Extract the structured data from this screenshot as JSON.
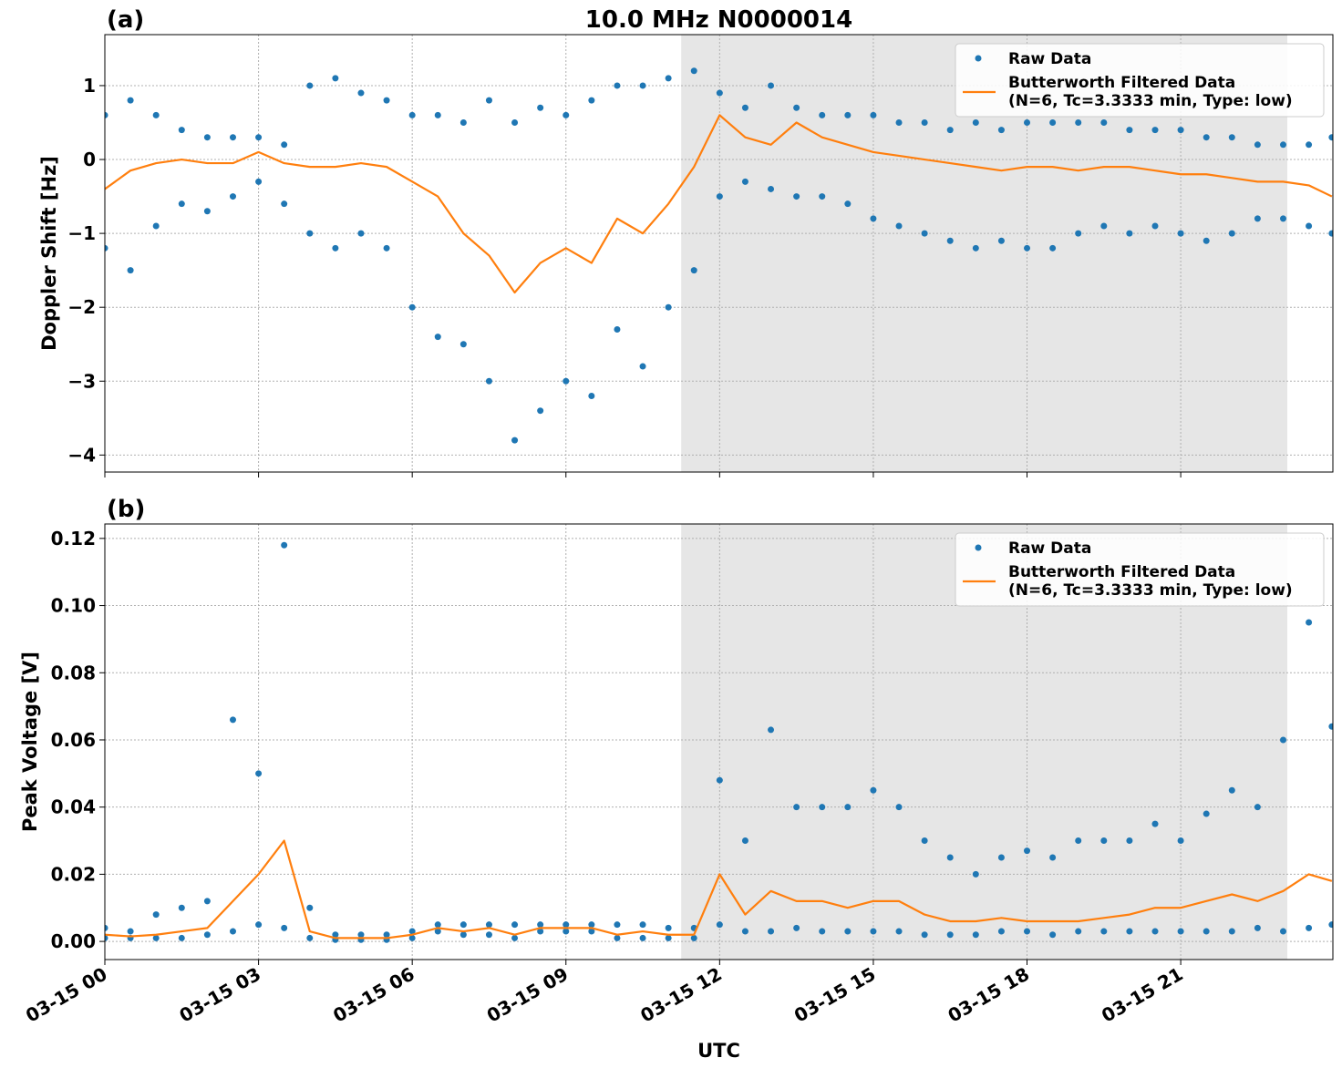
{
  "chart_data": [
    {
      "type": "line",
      "title": "10.0 MHz N0000014",
      "panel_label": "(a)",
      "ylabel": "Doppler Shift [Hz]",
      "xlim": [
        0,
        23.97
      ],
      "xticks": [
        0,
        3,
        6,
        9,
        12,
        15,
        18,
        21
      ],
      "ylim": [
        -4.23,
        1.69
      ],
      "yticks": [
        {
          "value": -4,
          "label": "−4"
        },
        {
          "value": -3,
          "label": "−3"
        },
        {
          "value": -2,
          "label": "−2"
        },
        {
          "value": -1,
          "label": "−1"
        },
        0,
        1
      ],
      "grid": true,
      "shade": [
        11.25,
        23.08
      ],
      "legend": "upper right",
      "x": [
        0,
        0.5,
        1,
        1.5,
        2,
        2.5,
        3,
        3.5,
        4,
        4.5,
        5,
        5.5,
        6,
        6.5,
        7,
        7.5,
        8,
        8.5,
        9,
        9.5,
        10,
        10.5,
        11,
        11.5,
        12,
        12.5,
        13,
        13.5,
        14,
        14.5,
        15,
        15.5,
        16,
        16.5,
        17,
        17.5,
        18,
        18.5,
        19,
        19.5,
        20,
        20.5,
        21,
        21.5,
        22,
        22.5,
        23,
        23.5,
        23.95
      ],
      "series": [
        {
          "name": "Raw Data",
          "color": "#1f77b4",
          "style": "markers",
          "x": [
            0,
            0,
            0.5,
            0.5,
            1,
            1,
            1.5,
            1.5,
            2,
            2,
            2.5,
            2.5,
            3,
            3,
            3.5,
            3.5,
            4,
            4,
            4.5,
            4.5,
            5,
            5,
            5.5,
            5.5,
            6,
            6,
            6.5,
            6.5,
            7,
            7,
            7.5,
            7.5,
            8,
            8,
            8.5,
            8.5,
            9,
            9,
            9.5,
            9.5,
            10,
            10,
            10.5,
            10.5,
            11,
            11,
            11.5,
            11.5,
            12,
            12,
            12.5,
            12.5,
            13,
            13,
            13.5,
            13.5,
            14,
            14,
            14.5,
            14.5,
            15,
            15,
            15.5,
            15.5,
            16,
            16,
            16.5,
            16.5,
            17,
            17,
            17.5,
            17.5,
            18,
            18,
            18.5,
            18.5,
            19,
            19,
            19.5,
            19.5,
            20,
            20,
            20.5,
            20.5,
            21,
            21,
            21.5,
            21.5,
            22,
            22,
            22.5,
            22.5,
            23,
            23,
            23.5,
            23.5,
            23.95,
            23.95
          ],
          "values": [
            0.6,
            -1.2,
            0.8,
            -1.5,
            0.6,
            -0.9,
            0.4,
            -0.6,
            0.3,
            -0.7,
            0.3,
            -0.5,
            0.3,
            -0.3,
            0.2,
            -0.6,
            1.0,
            -1.0,
            1.1,
            -1.2,
            0.9,
            -1.0,
            0.8,
            -1.2,
            0.6,
            -2.0,
            0.6,
            -2.4,
            0.5,
            -2.5,
            0.8,
            -3.0,
            0.5,
            -3.8,
            0.7,
            -3.4,
            0.6,
            -3.0,
            0.8,
            -3.2,
            1.0,
            -2.3,
            1.0,
            -2.8,
            1.1,
            -2.0,
            1.2,
            -1.5,
            0.9,
            -0.5,
            0.7,
            -0.3,
            1.0,
            -0.4,
            0.7,
            -0.5,
            0.6,
            -0.5,
            0.6,
            -0.6,
            0.6,
            -0.8,
            0.5,
            -0.9,
            0.5,
            -1.0,
            0.4,
            -1.1,
            0.5,
            -1.2,
            0.4,
            -1.1,
            0.5,
            -1.2,
            0.5,
            -1.2,
            0.5,
            -1.0,
            0.5,
            -0.9,
            0.4,
            -1.0,
            0.4,
            -0.9,
            0.4,
            -1.0,
            0.3,
            -1.1,
            0.3,
            -1.0,
            0.2,
            -0.8,
            0.2,
            -0.8,
            0.2,
            -0.9,
            0.3,
            -1.0
          ]
        },
        {
          "name": "Butterworth Filtered Data\n(N=6, Tc=3.3333 min, Type: low)",
          "color": "#ff7f0e",
          "style": "line",
          "values": [
            -0.4,
            -0.15,
            -0.05,
            0.0,
            -0.05,
            -0.05,
            0.1,
            -0.05,
            -0.1,
            -0.1,
            -0.05,
            -0.1,
            -0.3,
            -0.5,
            -1.0,
            -1.3,
            -1.8,
            -1.4,
            -1.2,
            -1.4,
            -0.8,
            -1.0,
            -0.6,
            -0.1,
            0.6,
            0.3,
            0.2,
            0.5,
            0.3,
            0.2,
            0.1,
            0.05,
            0.0,
            -0.05,
            -0.1,
            -0.15,
            -0.1,
            -0.1,
            -0.15,
            -0.1,
            -0.1,
            -0.15,
            -0.2,
            -0.2,
            -0.25,
            -0.3,
            -0.3,
            -0.35,
            -0.5
          ]
        }
      ]
    },
    {
      "type": "line",
      "panel_label": "(b)",
      "ylabel": "Peak Voltage [V]",
      "xlabel": "UTC",
      "xlim": [
        0,
        23.97
      ],
      "xticks": [
        {
          "value": 0,
          "label": "03-15 00"
        },
        {
          "value": 3,
          "label": "03-15 03"
        },
        {
          "value": 6,
          "label": "03-15 06"
        },
        {
          "value": 9,
          "label": "03-15 09"
        },
        {
          "value": 12,
          "label": "03-15 12"
        },
        {
          "value": 15,
          "label": "03-15 15"
        },
        {
          "value": 18,
          "label": "03-15 18"
        },
        {
          "value": 21,
          "label": "03-15 21"
        }
      ],
      "ylim": [
        -0.0054,
        0.1243
      ],
      "yticks": [
        {
          "value": 0,
          "label": "0.00"
        },
        0.02,
        0.04,
        0.06,
        0.08,
        {
          "value": 0.1,
          "label": "0.10"
        },
        0.12
      ],
      "grid": true,
      "shade": [
        11.25,
        23.08
      ],
      "legend": "upper right",
      "x": [
        0,
        0.5,
        1,
        1.5,
        2,
        2.5,
        3,
        3.5,
        4,
        4.5,
        5,
        5.5,
        6,
        6.5,
        7,
        7.5,
        8,
        8.5,
        9,
        9.5,
        10,
        10.5,
        11,
        11.5,
        12,
        12.5,
        13,
        13.5,
        14,
        14.5,
        15,
        15.5,
        16,
        16.5,
        17,
        17.5,
        18,
        18.5,
        19,
        19.5,
        20,
        20.5,
        21,
        21.5,
        22,
        22.5,
        23,
        23.5,
        23.95
      ],
      "series": [
        {
          "name": "Raw Data",
          "color": "#1f77b4",
          "style": "markers",
          "x": [
            0,
            0,
            0.5,
            0.5,
            1,
            1,
            1.5,
            1.5,
            2,
            2,
            2.5,
            2.5,
            3,
            3,
            3.5,
            3.5,
            4,
            4,
            4.5,
            4.5,
            5,
            5,
            5.5,
            5.5,
            6,
            6,
            6.5,
            6.5,
            7,
            7,
            7.5,
            7.5,
            8,
            8,
            8.5,
            8.5,
            9,
            9,
            9.5,
            9.5,
            10,
            10,
            10.5,
            10.5,
            11,
            11,
            11.5,
            11.5,
            12,
            12,
            12.5,
            12.5,
            13,
            13,
            13.5,
            13.5,
            14,
            14,
            14.5,
            14.5,
            15,
            15,
            15.5,
            15.5,
            16,
            16,
            16.5,
            16.5,
            17,
            17,
            17.5,
            17.5,
            18,
            18,
            18.5,
            18.5,
            19,
            19,
            19.5,
            19.5,
            20,
            20,
            20.5,
            20.5,
            21,
            21,
            21.5,
            21.5,
            22,
            22,
            22.5,
            22.5,
            23,
            23,
            23.5,
            23.5,
            23.95,
            23.95
          ],
          "values": [
            0.004,
            0.001,
            0.003,
            0.001,
            0.008,
            0.001,
            0.01,
            0.001,
            0.012,
            0.002,
            0.066,
            0.003,
            0.05,
            0.005,
            0.118,
            0.004,
            0.01,
            0.001,
            0.002,
            0.0005,
            0.002,
            0.0005,
            0.002,
            0.0005,
            0.003,
            0.001,
            0.005,
            0.003,
            0.005,
            0.002,
            0.005,
            0.002,
            0.005,
            0.001,
            0.005,
            0.003,
            0.005,
            0.003,
            0.005,
            0.003,
            0.005,
            0.001,
            0.005,
            0.001,
            0.004,
            0.001,
            0.004,
            0.001,
            0.048,
            0.005,
            0.03,
            0.003,
            0.063,
            0.003,
            0.04,
            0.004,
            0.04,
            0.003,
            0.04,
            0.003,
            0.045,
            0.003,
            0.04,
            0.003,
            0.03,
            0.002,
            0.025,
            0.002,
            0.02,
            0.002,
            0.025,
            0.003,
            0.027,
            0.003,
            0.025,
            0.002,
            0.03,
            0.003,
            0.03,
            0.003,
            0.03,
            0.003,
            0.035,
            0.003,
            0.03,
            0.003,
            0.038,
            0.003,
            0.045,
            0.003,
            0.04,
            0.004,
            0.06,
            0.003,
            0.095,
            0.004,
            0.064,
            0.005
          ]
        },
        {
          "name": "Butterworth Filtered Data\n(N=6, Tc=3.3333 min, Type: low)",
          "color": "#ff7f0e",
          "style": "line",
          "values": [
            0.002,
            0.0015,
            0.002,
            0.003,
            0.004,
            0.012,
            0.02,
            0.03,
            0.003,
            0.001,
            0.001,
            0.001,
            0.002,
            0.004,
            0.003,
            0.004,
            0.002,
            0.004,
            0.004,
            0.004,
            0.002,
            0.003,
            0.002,
            0.002,
            0.02,
            0.008,
            0.015,
            0.012,
            0.012,
            0.01,
            0.012,
            0.012,
            0.008,
            0.006,
            0.006,
            0.007,
            0.006,
            0.006,
            0.006,
            0.007,
            0.008,
            0.01,
            0.01,
            0.012,
            0.014,
            0.012,
            0.015,
            0.02,
            0.018
          ]
        }
      ]
    }
  ]
}
